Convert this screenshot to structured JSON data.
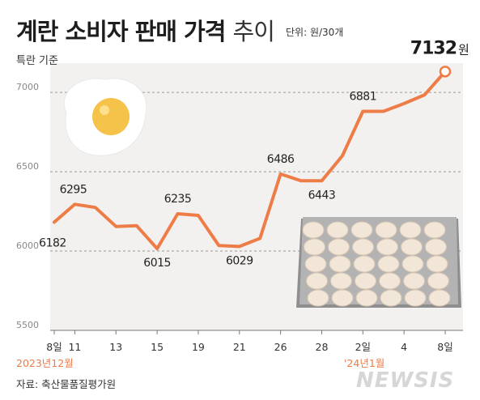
{
  "header": {
    "title_main": "계란 소비자 판매 가격",
    "title_sub": "추이",
    "unit": "단위: 원/30개",
    "basis": "특란 기준"
  },
  "footer": {
    "source": "자료: 축산물품질평가원",
    "watermark": "NEWSIS"
  },
  "periods": {
    "start": "2023년12월",
    "jan": "'24년1월"
  },
  "colors": {
    "line": "#ee7c47",
    "period_text": "#ee7c47",
    "plot_background": "#f3f1ef",
    "grid": "#999999"
  },
  "chart_data": {
    "type": "line",
    "title": "계란 소비자 판매 가격 추이",
    "ylabel": "단위: 원/30개",
    "ylim": [
      5500,
      7200
    ],
    "yticks": [
      "5500",
      "6000",
      "6500",
      "7000"
    ],
    "grid": "dashed horizontal",
    "x": [
      "8일",
      "11",
      "",
      "13",
      "",
      "15",
      "",
      "19",
      "",
      "21",
      "",
      "26",
      "",
      "28",
      "",
      "2일",
      "",
      "4",
      "",
      "8일"
    ],
    "x_dates": [
      "2023-12-08",
      "2023-12-11",
      "2023-12-12",
      "2023-12-13",
      "2023-12-14",
      "2023-12-15",
      "2023-12-18",
      "2023-12-19",
      "2023-12-20",
      "2023-12-21",
      "2023-12-22",
      "2023-12-26",
      "2023-12-27",
      "2023-12-28",
      "2023-12-29",
      "2024-01-02",
      "2024-01-03",
      "2024-01-04",
      "2024-01-05",
      "2024-01-08"
    ],
    "values": [
      6182,
      6295,
      6275,
      6155,
      6160,
      6015,
      6235,
      6225,
      6035,
      6029,
      6080,
      6486,
      6443,
      6443,
      6600,
      6881,
      6881,
      6930,
      6985,
      7132
    ],
    "data_labels": [
      "6182",
      "6295",
      "",
      "",
      "",
      "6015",
      "6235",
      "",
      "",
      "6029",
      "",
      "6486",
      "",
      "6443",
      "",
      "6881",
      "",
      "",
      "",
      "7132원"
    ]
  }
}
